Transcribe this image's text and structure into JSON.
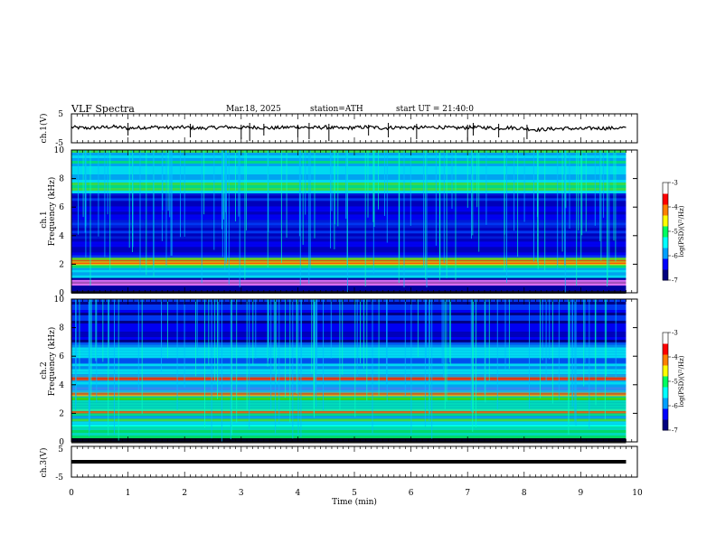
{
  "header": {
    "title": "VLF  Spectra",
    "date": "Mar.18, 2025",
    "station": "station=ATH",
    "start": "start  UT  =   21:40:0"
  },
  "chart_data": [
    {
      "type": "line",
      "ylabel": "ch.1(V)",
      "ylim": [
        -5,
        5
      ],
      "ytick_labels": [
        "5",
        "-5"
      ],
      "series": [
        {
          "color": "#000000",
          "x": [
            0,
            0.25,
            0.5,
            0.75,
            1,
            1.25,
            1.5,
            1.75,
            2,
            2.25,
            2.5,
            2.75,
            3,
            3.25,
            3.5,
            3.75,
            4,
            4.25,
            4.5,
            4.75,
            5,
            5.25,
            5.5,
            5.75,
            6,
            6.25,
            6.5,
            6.75,
            7,
            7.25,
            7.5,
            7.75,
            8,
            8.25,
            8.5,
            8.75,
            9,
            9.25,
            9.5,
            9.8
          ],
          "y": [
            0.4,
            0.1,
            0.3,
            0.6,
            0.0,
            0.3,
            0.5,
            0.2,
            0.4,
            0.0,
            0.3,
            0.5,
            0.2,
            0.4,
            0.1,
            0.3,
            0.6,
            0.2,
            0.4,
            0.0,
            0.3,
            0.5,
            0.1,
            0.4,
            0.2,
            0.3,
            0.5,
            0.1,
            0.3,
            0.4,
            0.0,
            0.3,
            -0.1,
            -0.6,
            -0.2,
            0.0,
            -0.3,
            0.1,
            0.0,
            0.3
          ]
        }
      ]
    },
    {
      "type": "heatmap",
      "ylabel": "ch.1\nFrequency (kHz)",
      "ylim": [
        0,
        10
      ],
      "ytick_labels": [
        "0",
        "2",
        "4",
        "6",
        "8",
        "10"
      ],
      "colorbar": {
        "label": "log(PSD)(V²/Hz)",
        "range": [
          -7,
          -3
        ],
        "tick_labels": [
          "-3",
          "-4",
          "-5",
          "-6",
          "-7"
        ],
        "colors": [
          "#000080",
          "#0000ff",
          "#00a0ff",
          "#00ffff",
          "#00ff60",
          "#ffff00",
          "#ff8000",
          "#ff0000",
          "#ffffff"
        ]
      },
      "bands_khz": [
        {
          "f": [
            0,
            0.12
          ],
          "level": "black"
        },
        {
          "f": [
            0.5,
            0.9
          ],
          "level": "magenta"
        },
        {
          "f": [
            1.1,
            1.8
          ],
          "level": "cyan"
        },
        {
          "f": [
            1.8,
            2.5
          ],
          "level": "green-yellow"
        },
        {
          "f": [
            2.1,
            2.3
          ],
          "level": "orange"
        },
        {
          "f": [
            2.5,
            7.0
          ],
          "level": "blue"
        },
        {
          "f": [
            7.0,
            10.0
          ],
          "level": "cyan-green"
        }
      ]
    },
    {
      "type": "heatmap",
      "ylabel": "ch.2\nFrequency (kHz)",
      "ylim": [
        0,
        10
      ],
      "ytick_labels": [
        "0",
        "2",
        "4",
        "6",
        "8",
        "10"
      ],
      "colorbar": {
        "label": "log(PSD)(V²/Hz)",
        "range": [
          -7,
          -3
        ],
        "tick_labels": [
          "-3",
          "-4",
          "-5",
          "-6",
          "-7"
        ],
        "colors": [
          "#000080",
          "#0000ff",
          "#00a0ff",
          "#00ffff",
          "#00ff60",
          "#ffff00",
          "#ff8000",
          "#ff0000",
          "#ffffff"
        ]
      },
      "bands_khz": [
        {
          "f": [
            0,
            0.3
          ],
          "level": "black"
        },
        {
          "f": [
            0.3,
            1.2
          ],
          "level": "green"
        },
        {
          "f": [
            1.2,
            2.0
          ],
          "level": "cyan-green"
        },
        {
          "f": [
            2.0,
            2.3
          ],
          "level": "orange-red"
        },
        {
          "f": [
            2.3,
            3.3
          ],
          "level": "green"
        },
        {
          "f": [
            3.3,
            3.6
          ],
          "level": "orange"
        },
        {
          "f": [
            3.6,
            4.4
          ],
          "level": "cyan"
        },
        {
          "f": [
            4.4,
            4.7
          ],
          "level": "orange"
        },
        {
          "f": [
            4.7,
            7.0
          ],
          "level": "cyan-blue"
        },
        {
          "f": [
            7.0,
            10.0
          ],
          "level": "dark-blue"
        }
      ]
    },
    {
      "type": "line",
      "ylabel": "ch.3(V)",
      "ylim": [
        -5,
        5
      ],
      "ytick_labels": [
        "5",
        "-5"
      ],
      "xlabel": "Time  (min)",
      "xlim": [
        0,
        10
      ],
      "xtick_labels": [
        "0",
        "1",
        "2",
        "3",
        "4",
        "5",
        "6",
        "7",
        "8",
        "9",
        "10"
      ],
      "series": [
        {
          "color": "#000000",
          "x": [
            0.0,
            9.8
          ],
          "y": [
            0.0,
            0.0
          ]
        }
      ]
    }
  ]
}
